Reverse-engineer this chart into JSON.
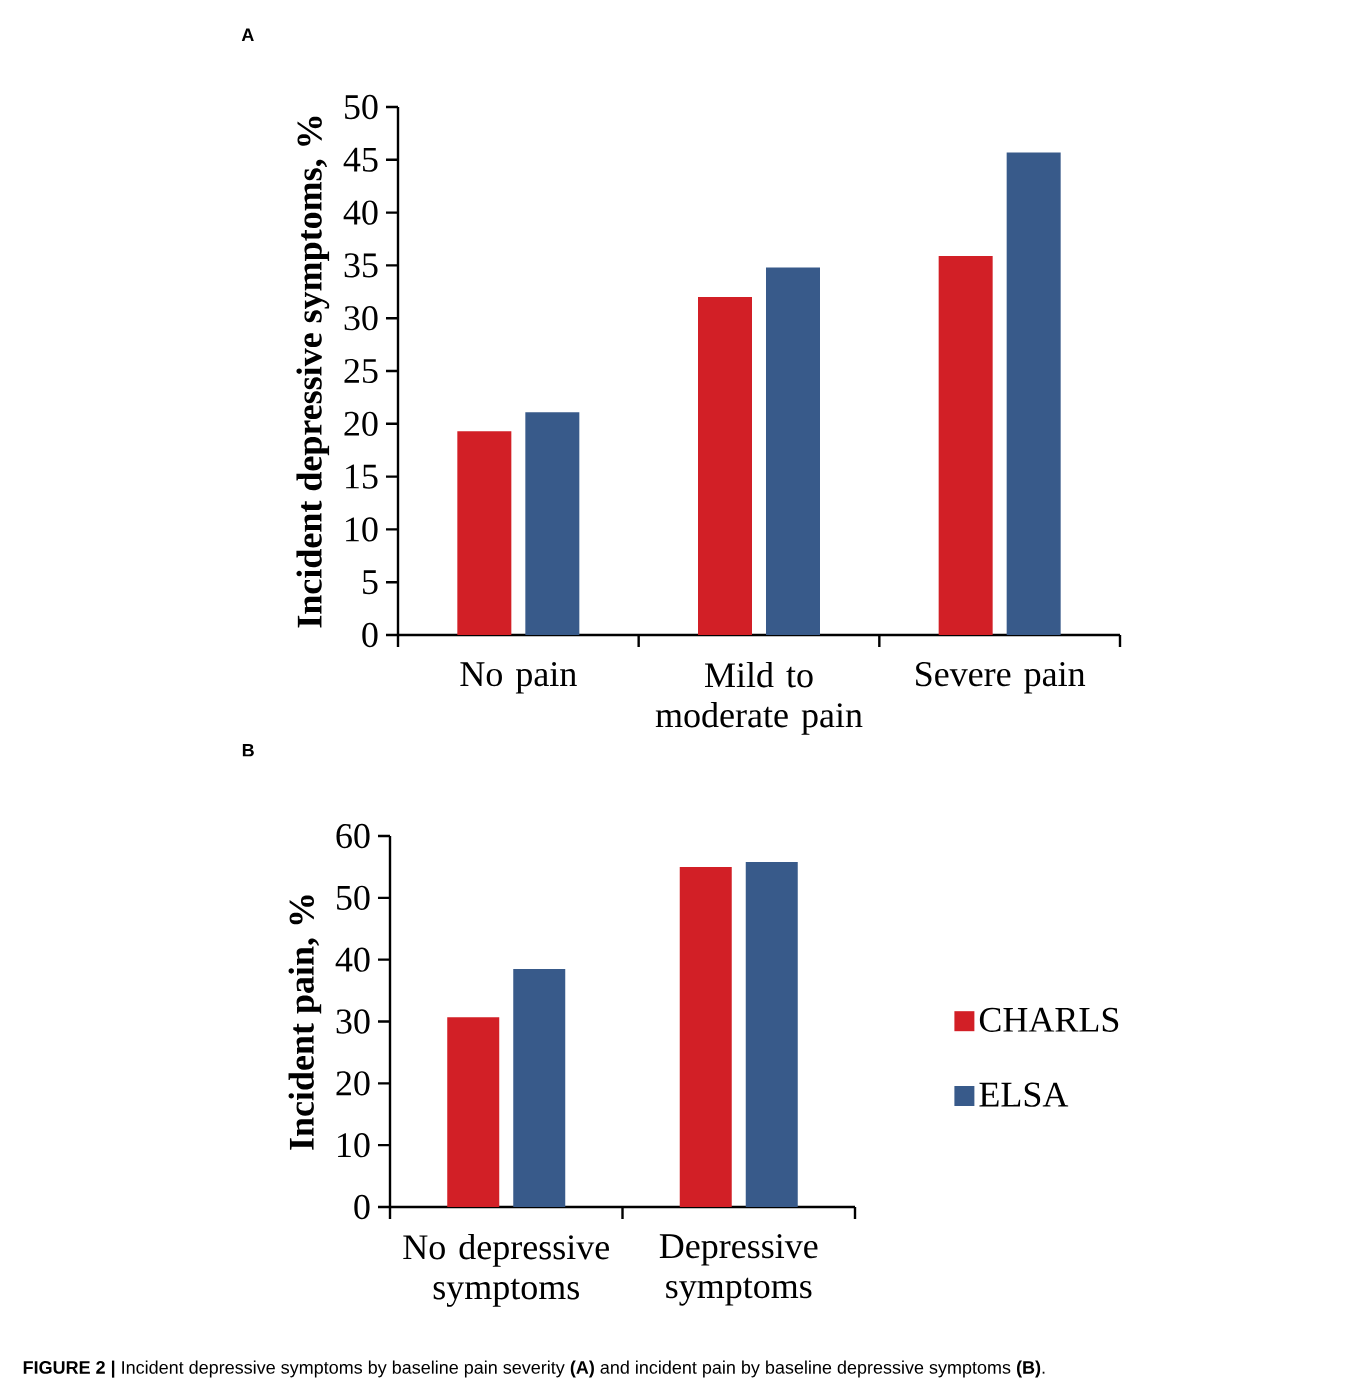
{
  "chart_data": [
    {
      "type": "bar",
      "title": "A",
      "ylabel": "Incident depressive symptoms, %",
      "categories": [
        "No pain",
        "Mild to moderate pain",
        "Severe pain"
      ],
      "series": [
        {
          "color": "#d21f26",
          "values": [
            19.3,
            32.0,
            35.9
          ]
        },
        {
          "color": "#385a8a",
          "values": [
            21.1,
            34.8,
            45.7
          ]
        }
      ],
      "ylim": [
        0,
        50
      ],
      "yticks": [
        0,
        5,
        10,
        15,
        20,
        25,
        30,
        35,
        40,
        45,
        50
      ]
    },
    {
      "type": "bar",
      "title": "B",
      "ylabel": "Incident pain, %",
      "categories": [
        "No depressive symptoms",
        "Depressive symptoms"
      ],
      "series": [
        {
          "name": "CHARLS",
          "color": "#d21f26",
          "values": [
            30.7,
            55.0
          ]
        },
        {
          "name": "ELSA",
          "color": "#385a8a",
          "values": [
            38.5,
            55.8
          ]
        }
      ],
      "ylim": [
        0,
        60
      ],
      "yticks": [
        0,
        10,
        20,
        30,
        40,
        50,
        60
      ],
      "legend": "right",
      "annotations": [
        "**FIGURE 2 |** Incident depressive symptoms by baseline pain severity **(A)** and incident pain by baseline depressive symptoms **(B)**."
      ]
    }
  ]
}
